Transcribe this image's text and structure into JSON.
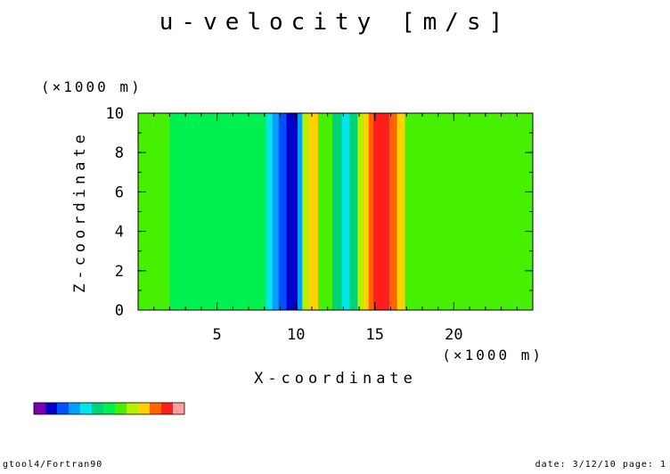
{
  "title": "u-velocity [m/s]",
  "footer": {
    "left": "gtool4/Fortran90",
    "right": "date: 3/12/10 page: 1"
  },
  "colorbar": {
    "colors": [
      "#7a00b4",
      "#0000c8",
      "#0050ff",
      "#00a0ff",
      "#00e6e6",
      "#00d278",
      "#00f050",
      "#46f000",
      "#b4f000",
      "#ffd200",
      "#ff6400",
      "#ff1e1e",
      "#ffa0a0"
    ]
  },
  "chart_data": {
    "type": "heatmap",
    "title": "u-velocity [m/s]",
    "xlabel": "X-coordinate",
    "ylabel": "Z-coordinate",
    "x_multiplier": "(×1000 m)",
    "y_multiplier": "(×1000 m)",
    "xlim": [
      0,
      25
    ],
    "ylim": [
      0,
      10
    ],
    "xticks": [
      5,
      10,
      15,
      20
    ],
    "yticks": [
      0,
      2,
      4,
      6,
      8,
      10
    ],
    "x_minor_step": 1,
    "y_minor_step": 1,
    "variation": "u varies with X only; uniform in Z",
    "bands": [
      {
        "x0": 0.0,
        "x1": 2.0,
        "color": "#46f000"
      },
      {
        "x0": 2.0,
        "x1": 8.1,
        "color": "#00f050"
      },
      {
        "x0": 8.1,
        "x1": 8.5,
        "color": "#00e6e6"
      },
      {
        "x0": 8.5,
        "x1": 8.9,
        "color": "#00a0ff"
      },
      {
        "x0": 8.9,
        "x1": 9.4,
        "color": "#0050ff"
      },
      {
        "x0": 9.4,
        "x1": 10.1,
        "color": "#0000c8"
      },
      {
        "x0": 10.1,
        "x1": 10.4,
        "color": "#00a0ff"
      },
      {
        "x0": 10.4,
        "x1": 10.8,
        "color": "#b4f000"
      },
      {
        "x0": 10.8,
        "x1": 11.4,
        "color": "#ffd200"
      },
      {
        "x0": 11.4,
        "x1": 12.3,
        "color": "#46f000"
      },
      {
        "x0": 12.3,
        "x1": 12.9,
        "color": "#00d278"
      },
      {
        "x0": 12.9,
        "x1": 13.4,
        "color": "#00e6e6"
      },
      {
        "x0": 13.4,
        "x1": 13.9,
        "color": "#00d278"
      },
      {
        "x0": 13.9,
        "x1": 14.3,
        "color": "#b4f000"
      },
      {
        "x0": 14.3,
        "x1": 14.6,
        "color": "#ffd200"
      },
      {
        "x0": 14.6,
        "x1": 14.9,
        "color": "#ff6400"
      },
      {
        "x0": 14.9,
        "x1": 15.4,
        "color": "#ff1e1e"
      },
      {
        "x0": 15.4,
        "x1": 15.9,
        "color": "#ff1e1e"
      },
      {
        "x0": 15.9,
        "x1": 16.4,
        "color": "#ff6400"
      },
      {
        "x0": 16.4,
        "x1": 16.9,
        "color": "#ffd200"
      },
      {
        "x0": 16.9,
        "x1": 25.0,
        "color": "#46f000"
      }
    ]
  }
}
